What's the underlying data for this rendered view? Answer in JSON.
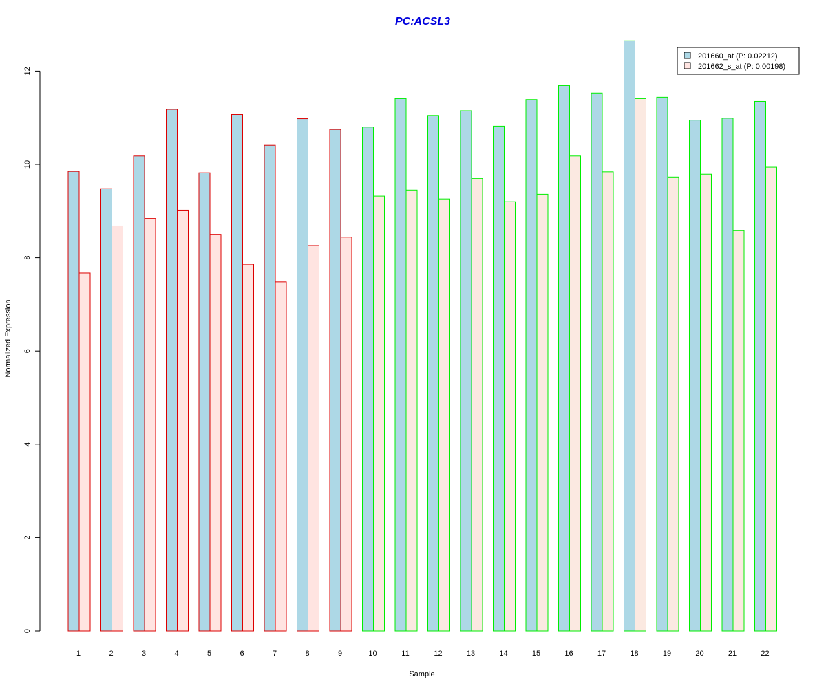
{
  "chart_data": {
    "type": "bar",
    "title": "PC:ACSL3",
    "xlabel": "Sample",
    "ylabel": "Normalized Expression",
    "categories": [
      "1",
      "2",
      "3",
      "4",
      "5",
      "6",
      "7",
      "8",
      "9",
      "10",
      "11",
      "12",
      "13",
      "14",
      "15",
      "16",
      "17",
      "18",
      "19",
      "20",
      "21",
      "22"
    ],
    "y_ticks": [
      "0",
      "2",
      "4",
      "6",
      "8",
      "10",
      "12"
    ],
    "ylim": [
      0,
      12.6
    ],
    "grid": false,
    "legend_position": "top-right",
    "series": [
      {
        "name": "201660_at (P: 0.02212)",
        "values": [
          9.85,
          9.48,
          10.18,
          11.18,
          9.82,
          11.07,
          10.41,
          10.98,
          10.75,
          10.8,
          11.41,
          11.05,
          11.15,
          10.82,
          11.39,
          11.69,
          11.53,
          12.65,
          11.44,
          10.95,
          10.99,
          11.35
        ]
      },
      {
        "name": "201662_s_at (P: 0.00198)",
        "values": [
          7.67,
          8.68,
          8.84,
          9.02,
          8.5,
          7.86,
          7.48,
          8.26,
          8.44,
          9.32,
          9.45,
          9.26,
          9.7,
          9.2,
          9.36,
          10.18,
          9.84,
          11.41,
          9.73,
          9.79,
          8.58,
          9.94
        ]
      }
    ],
    "group_sizes": [
      9,
      13
    ],
    "colors": {
      "title": "#0000dd",
      "series1_fill": "#add8e6",
      "series2_fill_group1": "#ffe4e1",
      "series2_fill_group2": "#fbe9e1",
      "group1_border": "#dd0000",
      "group2_border": "#00ee00",
      "axis": "#000000"
    }
  }
}
